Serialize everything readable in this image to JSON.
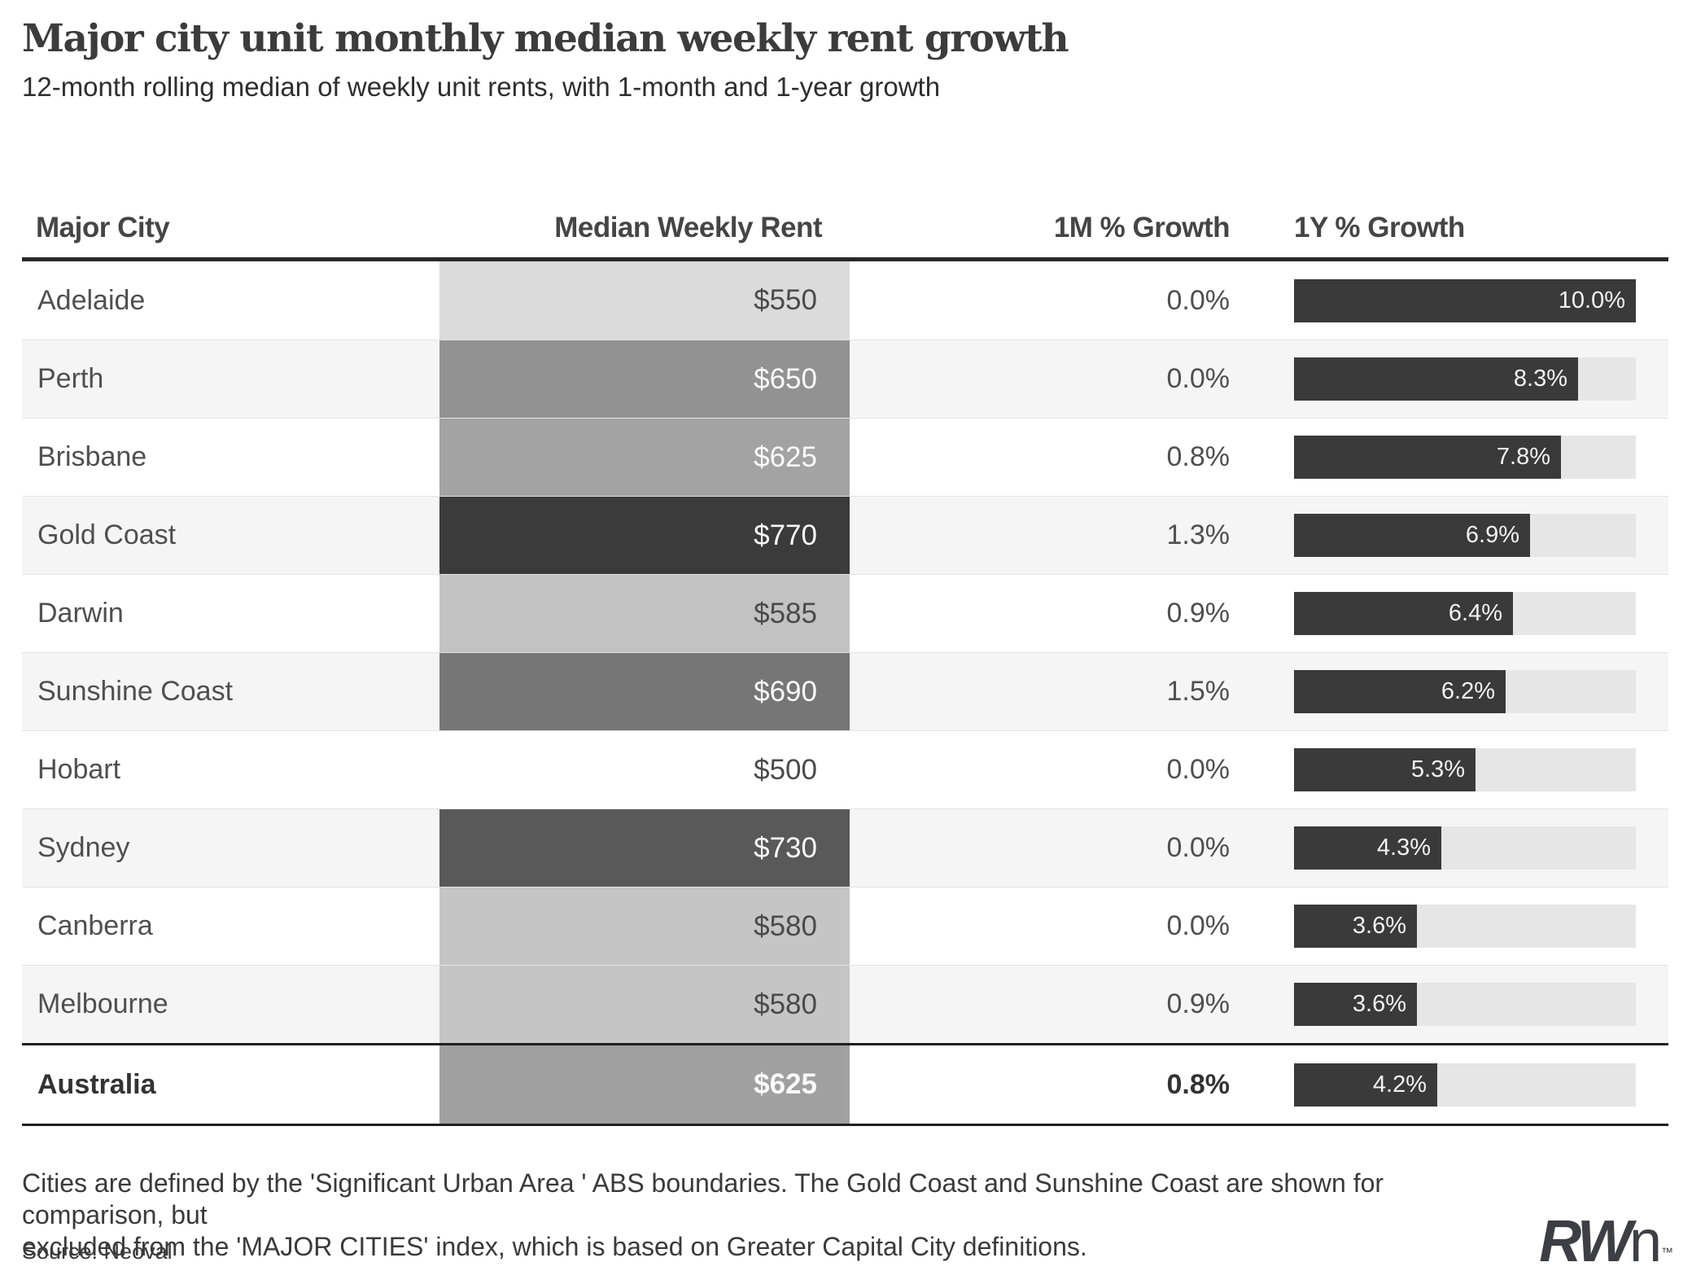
{
  "header": {
    "title": "Major city unit monthly median weekly rent growth",
    "subtitle": "12-month rolling median of weekly unit rents, with 1-month and 1-year growth"
  },
  "table": {
    "columns": [
      "Major City",
      "Median Weekly Rent",
      "1M % Growth",
      "1Y % Growth"
    ],
    "bar_max_percent": 10,
    "rows": [
      {
        "city": "Adelaide",
        "rent": "$550",
        "rent_bg": "#dbdbdb",
        "rent_text": "dark",
        "m1": "0.0%",
        "y1_pct": 10.0,
        "y1_label": "10.0%",
        "total": false
      },
      {
        "city": "Perth",
        "rent": "$650",
        "rent_bg": "#929292",
        "rent_text": "light",
        "m1": "0.0%",
        "y1_pct": 8.3,
        "y1_label": "8.3%",
        "total": false
      },
      {
        "city": "Brisbane",
        "rent": "$625",
        "rent_bg": "#a3a3a3",
        "rent_text": "light",
        "m1": "0.8%",
        "y1_pct": 7.8,
        "y1_label": "7.8%",
        "total": false
      },
      {
        "city": "Gold Coast",
        "rent": "$770",
        "rent_bg": "#3b3b3b",
        "rent_text": "light",
        "m1": "1.3%",
        "y1_pct": 6.9,
        "y1_label": "6.9%",
        "total": false
      },
      {
        "city": "Darwin",
        "rent": "$585",
        "rent_bg": "#c2c2c2",
        "rent_text": "dark",
        "m1": "0.9%",
        "y1_pct": 6.4,
        "y1_label": "6.4%",
        "total": false
      },
      {
        "city": "Sunshine Coast",
        "rent": "$690",
        "rent_bg": "#767676",
        "rent_text": "light",
        "m1": "1.5%",
        "y1_pct": 6.2,
        "y1_label": "6.2%",
        "total": false
      },
      {
        "city": "Hobart",
        "rent": "$500",
        "rent_bg": "transparent",
        "rent_text": "dark",
        "m1": "0.0%",
        "y1_pct": 5.3,
        "y1_label": "5.3%",
        "total": false
      },
      {
        "city": "Sydney",
        "rent": "$730",
        "rent_bg": "#595959",
        "rent_text": "light",
        "m1": "0.0%",
        "y1_pct": 4.3,
        "y1_label": "4.3%",
        "total": false
      },
      {
        "city": "Canberra",
        "rent": "$580",
        "rent_bg": "#c5c5c5",
        "rent_text": "dark",
        "m1": "0.0%",
        "y1_pct": 3.6,
        "y1_label": "3.6%",
        "total": false
      },
      {
        "city": "Melbourne",
        "rent": "$580",
        "rent_bg": "#c5c5c5",
        "rent_text": "dark",
        "m1": "0.9%",
        "y1_pct": 3.6,
        "y1_label": "3.6%",
        "total": false
      },
      {
        "city": "Australia",
        "rent": "$625",
        "rent_bg": "#a0a0a0",
        "rent_text": "light",
        "m1": "0.8%",
        "y1_pct": 4.2,
        "y1_label": "4.2%",
        "total": true
      }
    ]
  },
  "chart_data": {
    "type": "table",
    "title": "Major city unit monthly median weekly rent growth",
    "subtitle": "12-month rolling median of weekly unit rents, with 1-month and 1-year growth",
    "columns": [
      "Major City",
      "Median Weekly Rent",
      "1M % Growth",
      "1Y % Growth"
    ],
    "bar_column": "1Y % Growth",
    "bar_axis": {
      "min": 0,
      "max": 10,
      "unit": "%"
    },
    "rent_shading": {
      "note": "Median Weekly Rent cells shaded darker for higher rents",
      "min_rent": 500,
      "max_rent": 770
    },
    "rows": [
      {
        "city": "Adelaide",
        "median_weekly_rent": 550,
        "m1_growth_pct": 0.0,
        "y1_growth_pct": 10.0
      },
      {
        "city": "Perth",
        "median_weekly_rent": 650,
        "m1_growth_pct": 0.0,
        "y1_growth_pct": 8.3
      },
      {
        "city": "Brisbane",
        "median_weekly_rent": 625,
        "m1_growth_pct": 0.8,
        "y1_growth_pct": 7.8
      },
      {
        "city": "Gold Coast",
        "median_weekly_rent": 770,
        "m1_growth_pct": 1.3,
        "y1_growth_pct": 6.9
      },
      {
        "city": "Darwin",
        "median_weekly_rent": 585,
        "m1_growth_pct": 0.9,
        "y1_growth_pct": 6.4
      },
      {
        "city": "Sunshine Coast",
        "median_weekly_rent": 690,
        "m1_growth_pct": 1.5,
        "y1_growth_pct": 6.2
      },
      {
        "city": "Hobart",
        "median_weekly_rent": 500,
        "m1_growth_pct": 0.0,
        "y1_growth_pct": 5.3
      },
      {
        "city": "Sydney",
        "median_weekly_rent": 730,
        "m1_growth_pct": 0.0,
        "y1_growth_pct": 4.3
      },
      {
        "city": "Canberra",
        "median_weekly_rent": 580,
        "m1_growth_pct": 0.0,
        "y1_growth_pct": 3.6
      },
      {
        "city": "Melbourne",
        "median_weekly_rent": 580,
        "m1_growth_pct": 0.9,
        "y1_growth_pct": 3.6
      },
      {
        "city": "Australia",
        "median_weekly_rent": 625,
        "m1_growth_pct": 0.8,
        "y1_growth_pct": 4.2,
        "is_summary_row": true
      }
    ]
  },
  "footer": {
    "note_line1": "Cities are defined by the 'Significant Urban Area ' ABS boundaries. The Gold Coast and Sunshine Coast are shown for comparison, but",
    "note_line2": "excluded from the 'MAJOR CITIES' index, which is based on Greater Capital City definitions.",
    "source": "Source: Neoval",
    "logo": {
      "rw": "RW",
      "n": "n",
      "tm": "™"
    }
  },
  "colors": {
    "bar_fill": "#3a3a3a",
    "bar_track": "#e6e6e6",
    "row_alt_bg": "#f5f5f5",
    "row_border": "#e3e3e3",
    "header_rule": "#282828",
    "total_rule": "#1f1f1f",
    "rent_text_dark": "#4a4a4a",
    "rent_text_light": "#fafafa",
    "text_primary": "#4f4f4f"
  }
}
